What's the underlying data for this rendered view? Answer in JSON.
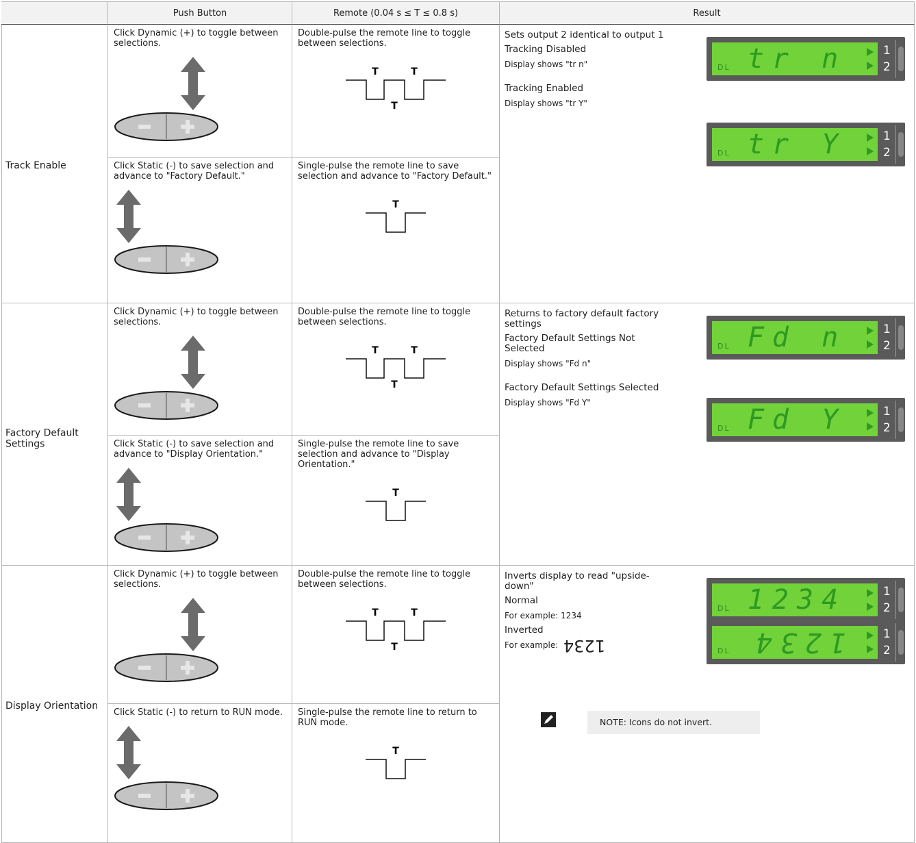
{
  "header": {
    "push_button": "Push Button",
    "remote": "Remote (0.04 s ≤ T ≤ 0.8 s)",
    "result": "Result"
  },
  "rows": [
    {
      "name": "Track Enable",
      "steps": [
        {
          "push": "Click Dynamic (+) to toggle between selections.",
          "remote": "Double-pulse the remote line to toggle between selections.",
          "pulse_labels": [
            "T",
            "T",
            "T"
          ]
        },
        {
          "push": "Click Static (-) to save selection and advance to \"Factory Default.\"",
          "remote": "Single-pulse the remote line to save selection and advance to \"Factory Default.\"",
          "pulse_labels": [
            "T"
          ]
        }
      ],
      "result": {
        "description": "Sets output 2 identical to output 1",
        "options": [
          {
            "label": "Tracking Disabled",
            "display": "Display shows \"tr n\"",
            "lcd": {
              "mode": "DL",
              "text": "tr n",
              "outputs": [
                "1",
                "2"
              ]
            }
          },
          {
            "label": "Tracking Enabled",
            "display": "Display shows \"tr Y\"",
            "lcd": {
              "mode": "DL",
              "text": "tr Y",
              "outputs": [
                "1",
                "2"
              ]
            }
          }
        ]
      }
    },
    {
      "name": "Factory Default Settings",
      "steps": [
        {
          "push": "Click Dynamic (+) to toggle between selections.",
          "remote": "Double-pulse the remote line to toggle between selections.",
          "pulse_labels": [
            "T",
            "T",
            "T"
          ]
        },
        {
          "push": "Click Static (-) to save selection and advance to \"Display Orientation.\"",
          "remote": "Single-pulse the remote line to save selection and advance to \"Display Orientation.\"",
          "pulse_labels": [
            "T"
          ]
        }
      ],
      "result": {
        "description": "Returns to factory default factory settings",
        "options": [
          {
            "label": "Factory Default Settings Not Selected",
            "display": "Display shows \"Fd n\"",
            "lcd": {
              "mode": "DL",
              "text": "Fd n",
              "outputs": [
                "1",
                "2"
              ]
            }
          },
          {
            "label": "Factory Default Settings Selected",
            "display": "Display shows \"Fd Y\"",
            "lcd": {
              "mode": "DL",
              "text": "Fd Y",
              "outputs": [
                "1",
                "2"
              ]
            }
          }
        ]
      }
    },
    {
      "name": "Display Orientation",
      "steps": [
        {
          "push": "Click Dynamic (+) to toggle between selections.",
          "remote": "Double-pulse the remote line to toggle between selections.",
          "pulse_labels": [
            "T",
            "T",
            "T"
          ]
        },
        {
          "push": "Click Static (-) to return to RUN mode.",
          "remote": "Single-pulse the remote line to return to RUN mode.",
          "pulse_labels": [
            "T"
          ]
        }
      ],
      "result": {
        "description": "Inverts display to read \"upside-down\"",
        "options": [
          {
            "label": "Normal",
            "display": "For example: 1234",
            "lcd": {
              "mode": "DL",
              "text": "1234",
              "outputs": [
                "1",
                "2"
              ]
            }
          },
          {
            "label": "Inverted",
            "display": "For example:",
            "example": "1234",
            "lcd": {
              "mode": "DL",
              "text": "1234",
              "outputs": [
                "1",
                "2"
              ]
            }
          }
        ],
        "note": "NOTE: Icons do not invert."
      }
    }
  ]
}
